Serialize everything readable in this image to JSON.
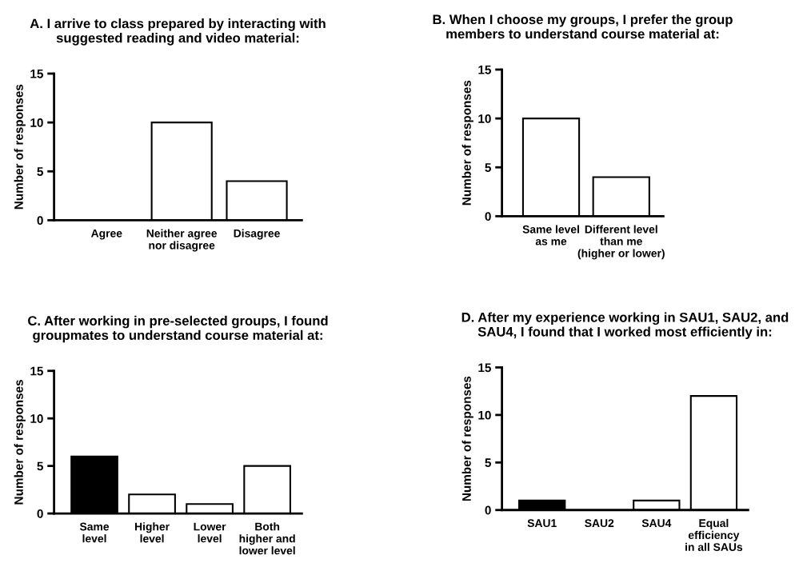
{
  "chart_data": [
    {
      "type": "bar",
      "title": "A. I arrive to class prepared by interacting with\nsuggested reading and video material:",
      "ylabel": "Number of responses",
      "categories": [
        "Agree",
        "Neither agree\nnor disagree",
        "Disagree"
      ],
      "values": [
        0,
        10,
        4
      ],
      "colors": [
        "#ffffff",
        "#ffffff",
        "#ffffff"
      ],
      "ylim": [
        0,
        15
      ],
      "yticks": [
        0,
        5,
        10,
        15
      ],
      "grid": false,
      "legend": false
    },
    {
      "type": "bar",
      "title": "B. When I choose my groups, I prefer the group\nmembers to understand course material at:",
      "ylabel": "Number of responses",
      "categories": [
        "Same level\nas me",
        "Different level\nthan me\n(higher or lower)"
      ],
      "values": [
        10,
        4
      ],
      "colors": [
        "#ffffff",
        "#ffffff"
      ],
      "ylim": [
        0,
        15
      ],
      "yticks": [
        0,
        5,
        10,
        15
      ],
      "grid": false,
      "legend": false
    },
    {
      "type": "bar",
      "title": "C. After working in pre-selected groups, I found\ngroupmates to understand course material at:",
      "ylabel": "Number of responses",
      "categories": [
        "Same\nlevel",
        "Higher\nlevel",
        "Lower\nlevel",
        "Both\nhigher and\nlower level"
      ],
      "values": [
        6,
        2,
        1,
        5
      ],
      "colors": [
        "#000000",
        "#ffffff",
        "#ffffff",
        "#ffffff"
      ],
      "ylim": [
        0,
        15
      ],
      "yticks": [
        0,
        5,
        10,
        15
      ],
      "grid": false,
      "legend": false
    },
    {
      "type": "bar",
      "title": "D. After my experience working in SAU1, SAU2, and\nSAU4, I found that I worked most efficiently in:",
      "ylabel": "Number of responses",
      "categories": [
        "SAU1",
        "SAU2",
        "SAU4",
        "Equal\nefficiency\nin all SAUs"
      ],
      "values": [
        1,
        0,
        1,
        12
      ],
      "colors": [
        "#000000",
        "#ffffff",
        "#ffffff",
        "#ffffff"
      ],
      "ylim": [
        0,
        15
      ],
      "yticks": [
        0,
        5,
        10,
        15
      ],
      "grid": false,
      "legend": false
    }
  ]
}
